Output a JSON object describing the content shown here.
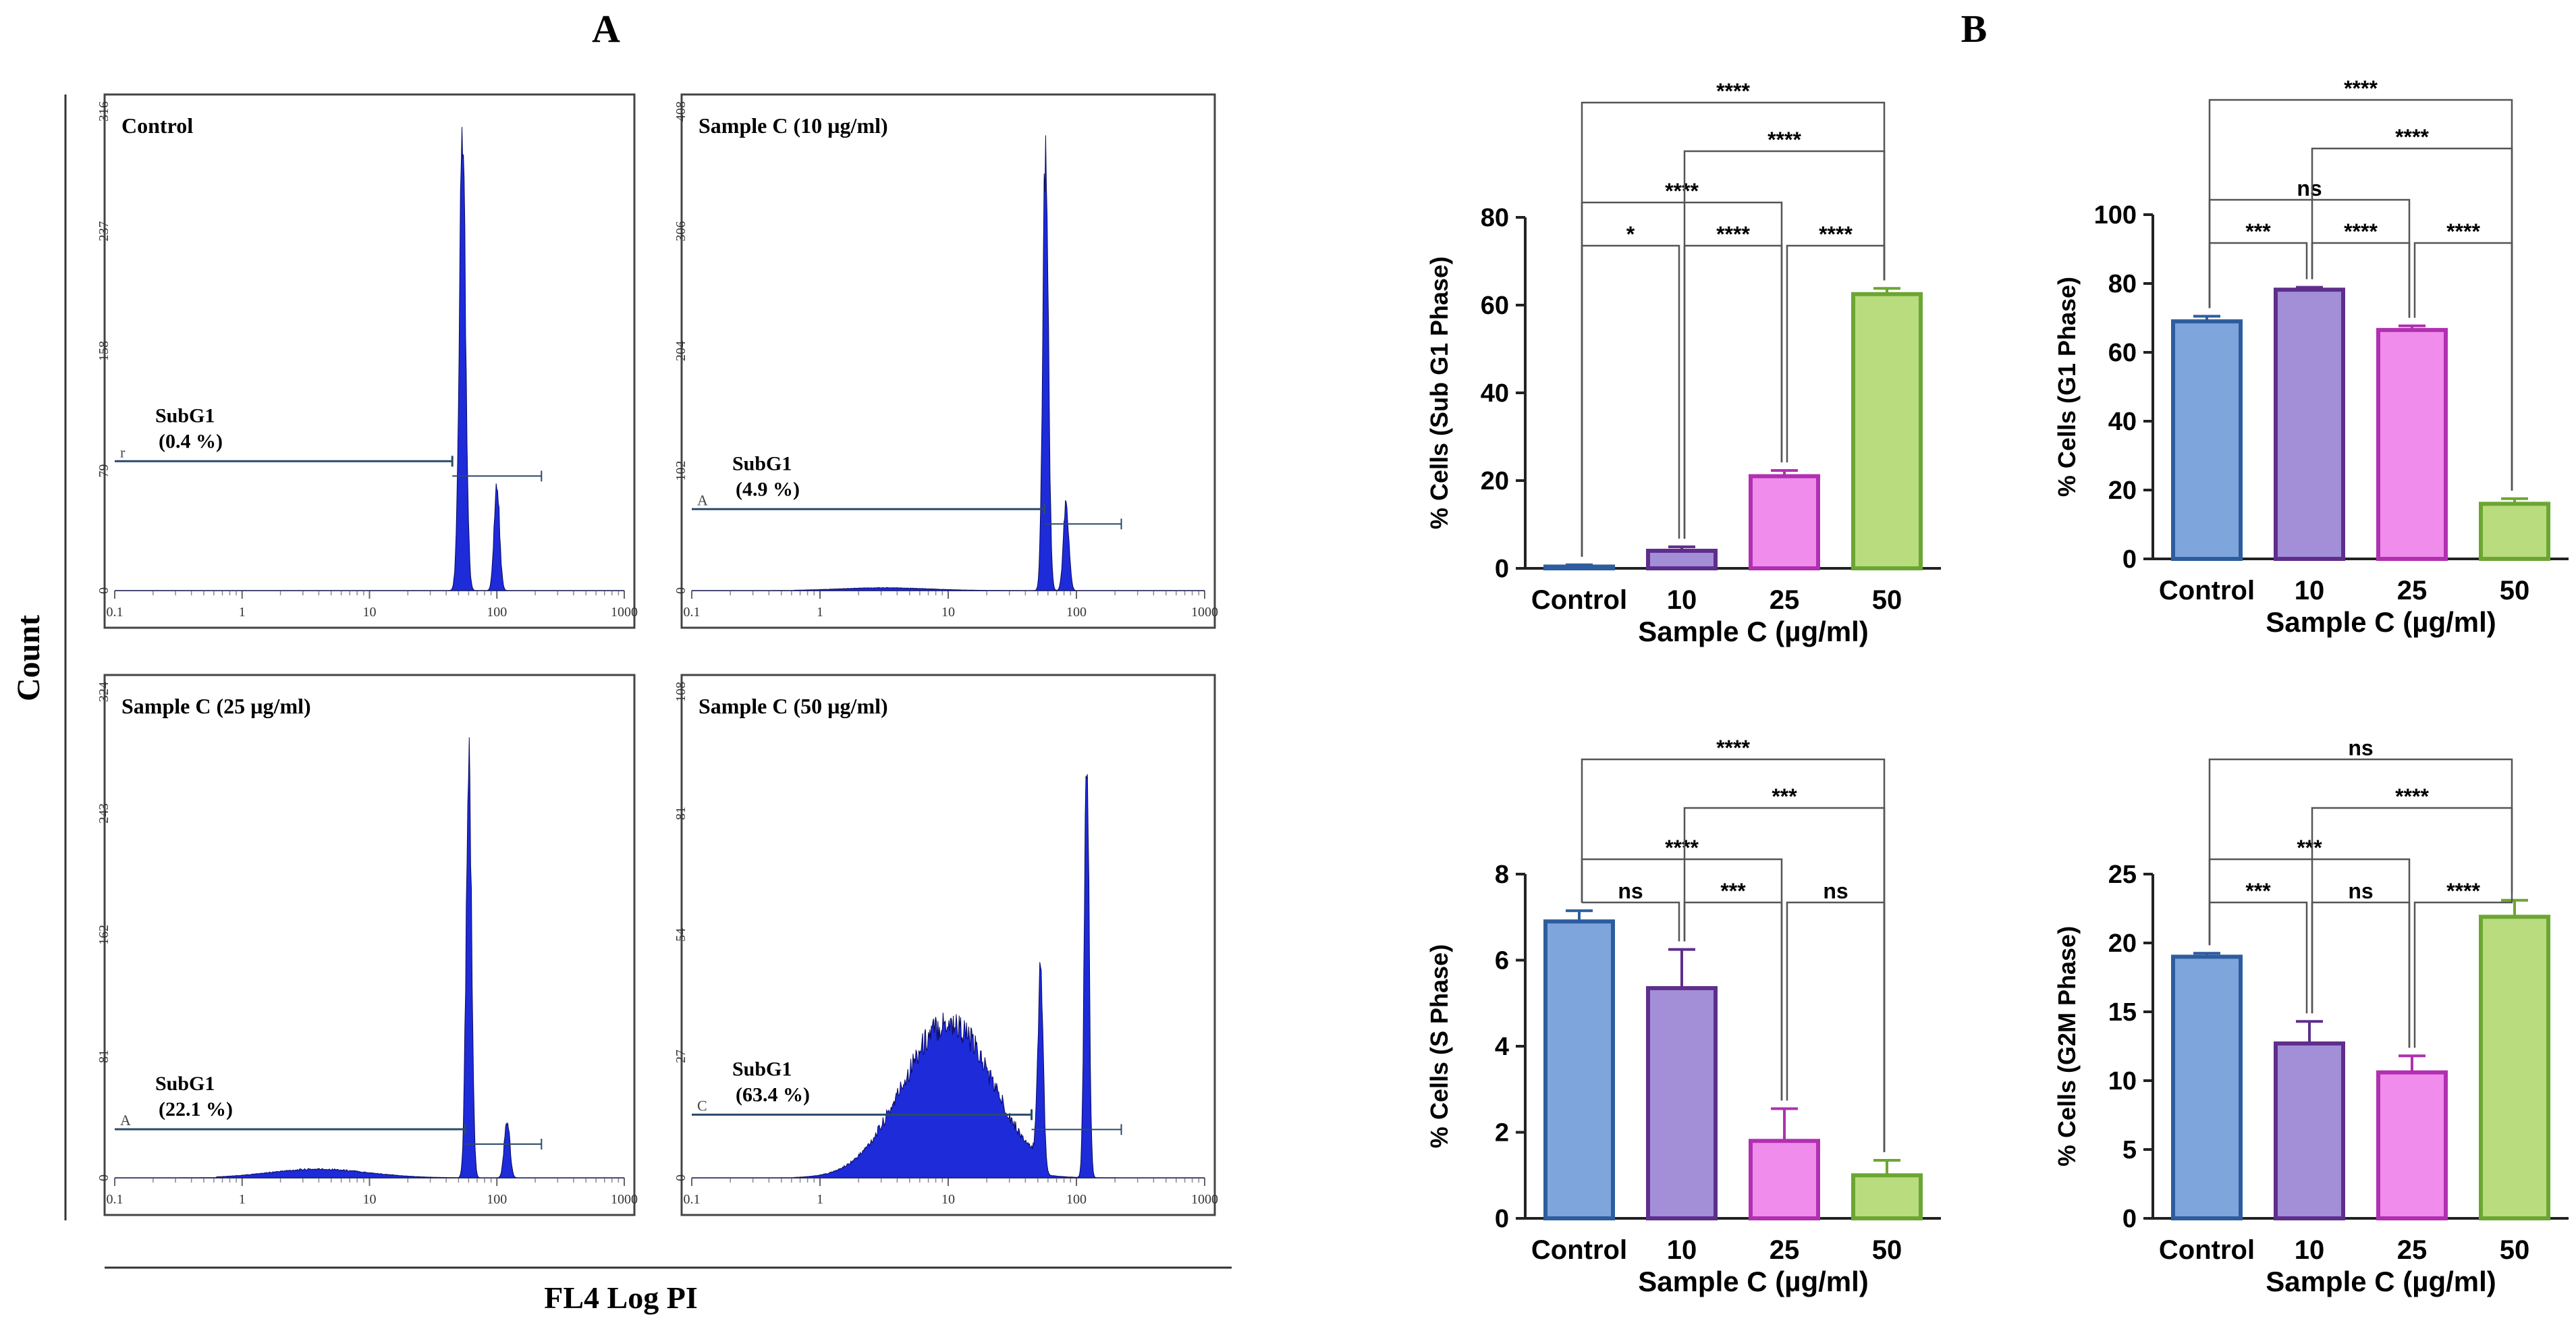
{
  "panel_labels": {
    "a": "A",
    "b": "B"
  },
  "colors": {
    "histogram_fill": "#1d2bd9",
    "bar_control": "#7ea6dc",
    "edge_control": "#2d5d9e",
    "bar_10": "#a38ed8",
    "edge_10": "#5e2e8c",
    "bar_25": "#f08cec",
    "edge_25": "#b030b0",
    "bar_50": "#b9dc7e",
    "edge_50": "#6ca632",
    "axis": "#222222"
  },
  "panel_a": {
    "y_axis_label": "Count",
    "x_axis_label": "FL4 Log PI",
    "x_ticks": [
      "0.1",
      "1",
      "10",
      "100",
      "1000"
    ],
    "histograms": [
      {
        "title": "Control",
        "y_ticks": [
          "0",
          "79",
          "158",
          "237",
          "316"
        ],
        "gate_label": "SubG1",
        "gate_pct": "(0.4 %)",
        "marker": "r"
      },
      {
        "title": "Sample C (10 µg/ml)",
        "y_ticks": [
          "0",
          "102",
          "204",
          "306",
          "408"
        ],
        "gate_label": "SubG1",
        "gate_pct": "(4.9 %)",
        "marker": "A"
      },
      {
        "title": "Sample C (25 µg/ml)",
        "y_ticks": [
          "0",
          "81",
          "162",
          "243",
          "324"
        ],
        "gate_label": "SubG1",
        "gate_pct": "(22.1 %)",
        "marker": "A"
      },
      {
        "title": "Sample C (50 µg/ml)",
        "y_ticks": [
          "0",
          "27",
          "54",
          "81",
          "108"
        ],
        "gate_label": "SubG1",
        "gate_pct": "(63.4 %)",
        "marker": "C"
      }
    ]
  },
  "chart_data": [
    {
      "type": "bar",
      "title": "",
      "categories": [
        "Control",
        "10",
        "25",
        "50"
      ],
      "values": [
        0.4,
        4.0,
        21.0,
        62.5
      ],
      "errors": [
        0.4,
        0.9,
        1.3,
        1.3
      ],
      "xlabel": "Sample C (µg/ml)",
      "ylabel": "% Cells (Sub G1 Phase)",
      "ylim": [
        0,
        80
      ],
      "yticks": [
        0,
        20,
        40,
        60,
        80
      ],
      "significance": [
        {
          "from": 0,
          "to": 1,
          "label": "*"
        },
        {
          "from": 1,
          "to": 2,
          "label": "****"
        },
        {
          "from": 2,
          "to": 3,
          "label": "****"
        },
        {
          "from": 0,
          "to": 2,
          "label": "****"
        },
        {
          "from": 1,
          "to": 3,
          "label": "****"
        },
        {
          "from": 0,
          "to": 3,
          "label": "****"
        }
      ]
    },
    {
      "type": "bar",
      "title": "",
      "categories": [
        "Control",
        "10",
        "25",
        "50"
      ],
      "values": [
        69.0,
        78.2,
        66.5,
        16.0
      ],
      "errors": [
        1.5,
        0.7,
        1.2,
        1.5
      ],
      "xlabel": "Sample C (µg/ml)",
      "ylabel": "% Cells (G1 Phase)",
      "ylim": [
        0,
        100
      ],
      "yticks": [
        0,
        20,
        40,
        60,
        80,
        100
      ],
      "significance": [
        {
          "from": 0,
          "to": 1,
          "label": "***"
        },
        {
          "from": 1,
          "to": 2,
          "label": "****"
        },
        {
          "from": 2,
          "to": 3,
          "label": "****"
        },
        {
          "from": 0,
          "to": 2,
          "label": "ns"
        },
        {
          "from": 1,
          "to": 3,
          "label": "****"
        },
        {
          "from": 0,
          "to": 3,
          "label": "****"
        }
      ]
    },
    {
      "type": "bar",
      "title": "",
      "categories": [
        "Control",
        "10",
        "25",
        "50"
      ],
      "values": [
        6.9,
        5.35,
        1.8,
        1.0
      ],
      "errors": [
        0.25,
        0.9,
        0.75,
        0.35
      ],
      "xlabel": "Sample C (µg/ml)",
      "ylabel": "% Cells (S Phase)",
      "ylim": [
        0,
        8
      ],
      "yticks": [
        0,
        2,
        4,
        6,
        8
      ],
      "significance": [
        {
          "from": 0,
          "to": 1,
          "label": "ns"
        },
        {
          "from": 1,
          "to": 2,
          "label": "***"
        },
        {
          "from": 2,
          "to": 3,
          "label": "ns"
        },
        {
          "from": 0,
          "to": 2,
          "label": "****"
        },
        {
          "from": 1,
          "to": 3,
          "label": "***"
        },
        {
          "from": 0,
          "to": 3,
          "label": "****"
        }
      ]
    },
    {
      "type": "bar",
      "title": "",
      "categories": [
        "Control",
        "10",
        "25",
        "50"
      ],
      "values": [
        19.0,
        12.7,
        10.6,
        21.9
      ],
      "errors": [
        0.25,
        1.6,
        1.2,
        1.2
      ],
      "xlabel": "Sample C (µg/ml)",
      "ylabel": "% Cells (G2M Phase)",
      "ylim": [
        0,
        25
      ],
      "yticks": [
        0,
        5,
        10,
        15,
        20,
        25
      ],
      "significance": [
        {
          "from": 0,
          "to": 1,
          "label": "***"
        },
        {
          "from": 1,
          "to": 2,
          "label": "ns"
        },
        {
          "from": 2,
          "to": 3,
          "label": "****"
        },
        {
          "from": 0,
          "to": 2,
          "label": "***"
        },
        {
          "from": 1,
          "to": 3,
          "label": "****"
        },
        {
          "from": 0,
          "to": 3,
          "label": "ns"
        }
      ]
    }
  ]
}
